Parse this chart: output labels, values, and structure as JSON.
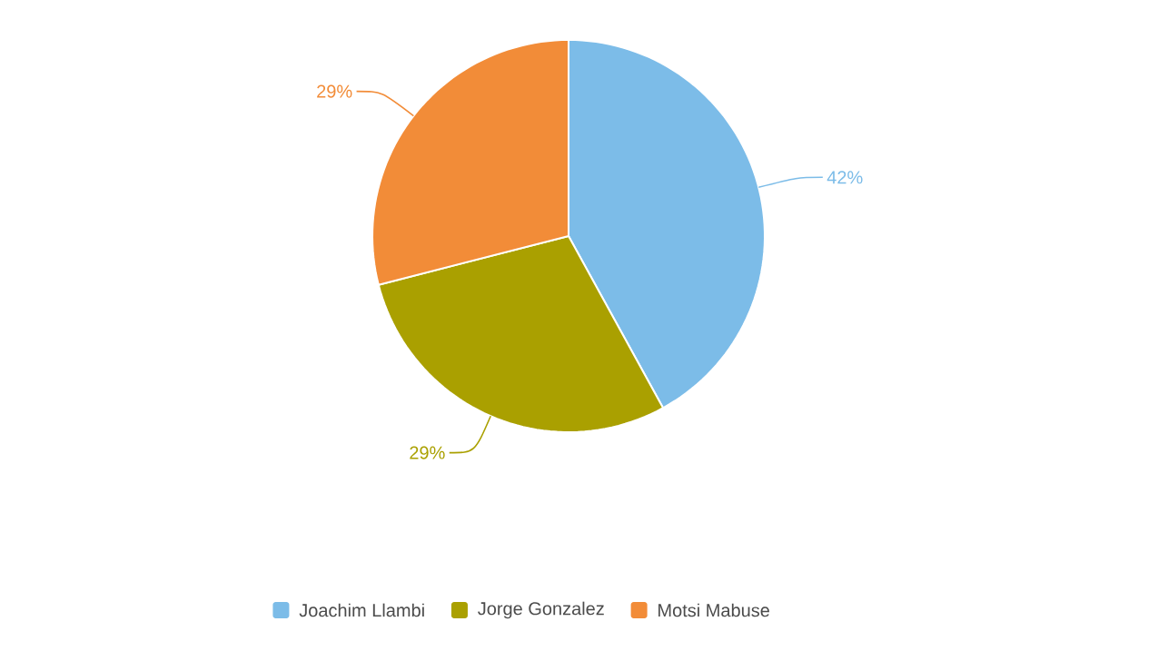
{
  "chart_data": {
    "type": "pie",
    "categories": [
      "Joachim Llambi",
      "Jorge Gonzalez",
      "Motsi Mabuse"
    ],
    "values": [
      42,
      29,
      29
    ],
    "colors": [
      "#7cbce8",
      "#aaa000",
      "#f28c38"
    ],
    "value_labels": [
      "42%",
      "29%",
      "29%"
    ],
    "legend": "bottom"
  }
}
